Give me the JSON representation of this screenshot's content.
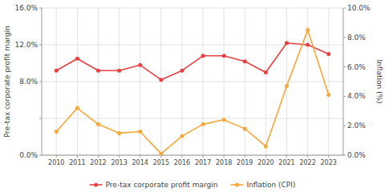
{
  "chart_data": {
    "type": "line",
    "x": [
      2010,
      2011,
      2012,
      2013,
      2014,
      2015,
      2016,
      2017,
      2018,
      2019,
      2020,
      2021,
      2022,
      2023
    ],
    "xlim": [
      2009.3,
      2023.7
    ],
    "xticks": [
      2010,
      2011,
      2012,
      2013,
      2014,
      2015,
      2016,
      2017,
      2018,
      2019,
      2020,
      2021,
      2022,
      2023
    ],
    "ylim": [
      0,
      16
    ],
    "yticks": [
      {
        "value": 0,
        "label": "0.0%"
      },
      {
        "value": 4,
        "label": null
      },
      {
        "value": 8,
        "label": "8.0%"
      },
      {
        "value": 12,
        "label": "12.0%"
      },
      {
        "value": 16,
        "label": "16.0%"
      }
    ],
    "y2lim": [
      0,
      10
    ],
    "y2ticks": [
      {
        "value": 0,
        "label": "0.0%"
      },
      {
        "value": 2,
        "label": "2.0%"
      },
      {
        "value": 4,
        "label": "4.0%"
      },
      {
        "value": 6,
        "label": "6.0%"
      },
      {
        "value": 8,
        "label": "8.0%"
      },
      {
        "value": 10,
        "label": "10.0%"
      }
    ],
    "ylabel": "Pre-tax corporate profit margin",
    "y2label": "Inflation (%)",
    "grid": true,
    "legend": "bottom",
    "series": [
      {
        "name": "Pre-tax corporate profit margin",
        "color": "#e84040",
        "marker": "circle",
        "values": [
          9.2,
          10.5,
          9.2,
          9.2,
          9.8,
          8.2,
          9.2,
          10.8,
          10.8,
          10.2,
          9.0,
          12.2,
          12.0,
          11.0
        ]
      },
      {
        "name": "Inflation (CPI)",
        "color": "#f4a83a",
        "marker": "circle",
        "axis": "y2",
        "values": [
          1.6,
          3.2,
          2.1,
          1.5,
          1.6,
          0.1,
          1.3,
          2.1,
          2.4,
          1.8,
          0.6,
          4.7,
          8.5,
          4.1
        ]
      }
    ]
  }
}
